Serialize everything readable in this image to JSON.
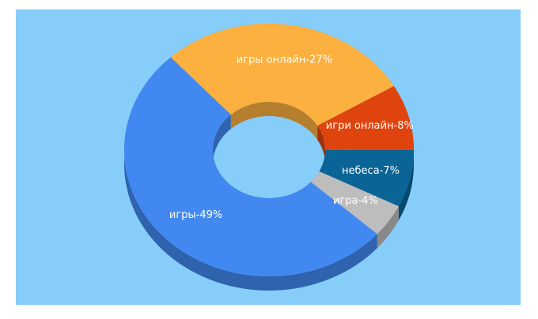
{
  "chart_data": {
    "type": "pie",
    "values": [
      49,
      27,
      8,
      7,
      4
    ],
    "value_labels": [
      "игры-49%",
      "игры онлайн-27%",
      "игри онлайн-8%",
      "небеса-7%",
      "игра-4%"
    ],
    "colors": [
      "#4189f0",
      "#fbb040",
      "#e0440e",
      "#0a6496",
      "#bdbdbd"
    ]
  }
}
